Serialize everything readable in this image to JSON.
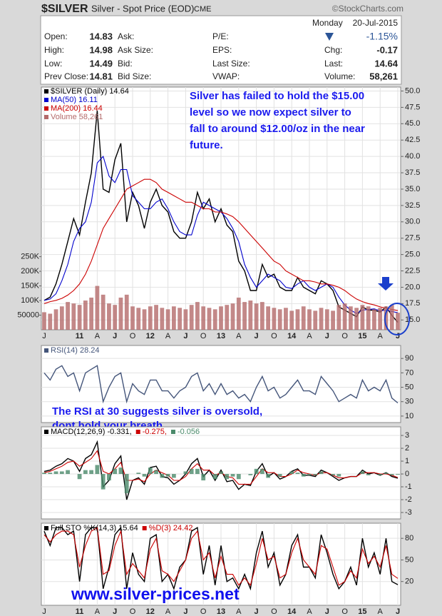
{
  "header": {
    "symbol": "$SILVER",
    "description": "Silver - Spot Price (EOD)",
    "exchange": "CME",
    "source": "©StockCharts.com",
    "day": "Monday",
    "date": "20-Jul-2015",
    "change_pct": "-1.15%",
    "rows": [
      [
        {
          "label": "Open:",
          "value": "14.83"
        },
        {
          "label": "Ask:"
        },
        {
          "label": "P/E:"
        }
      ],
      [
        {
          "label": "High:",
          "value": "14.98"
        },
        {
          "label": "Ask Size:"
        },
        {
          "label": "EPS:"
        },
        {
          "label": "Chg:",
          "value": "-0.17"
        }
      ],
      [
        {
          "label": "Low:",
          "value": "14.49"
        },
        {
          "label": "Bid:"
        },
        {
          "label": "Last Size:"
        },
        {
          "label": "Last:",
          "value": "14.64"
        }
      ],
      [
        {
          "label": "Prev Close:",
          "value": "14.81"
        },
        {
          "label": "Bid Size:"
        },
        {
          "label": "VWAP:"
        },
        {
          "label": "Volume:",
          "value": "58,261"
        }
      ]
    ]
  },
  "footer_url": "www.silver-prices.net",
  "chart_data": [
    {
      "type": "line",
      "grid": true,
      "legend": "upper left",
      "categories": [
        "J",
        null,
        null,
        null,
        null,
        null,
        "11",
        null,
        null,
        "A",
        null,
        null,
        "J",
        null,
        null,
        "O",
        null,
        null,
        "12",
        null,
        null,
        "A",
        null,
        null,
        "J",
        null,
        null,
        "O",
        null,
        null,
        "13",
        null,
        null,
        "A",
        null,
        null,
        "J",
        null,
        null,
        "O",
        null,
        null,
        "14",
        null,
        null,
        "A",
        null,
        null,
        "J",
        null,
        null,
        "O",
        null,
        null,
        "15",
        null,
        null,
        "A",
        null,
        null,
        "J"
      ],
      "annotation": [
        "Silver has failed to hold the $15.00",
        "level so we now expect silver to",
        "fall to around $12.00/oz in the near",
        "future."
      ],
      "ylim": [
        13.5,
        50.6
      ],
      "yticks": [
        {
          "value": 15,
          "label": "15.0"
        },
        17.5,
        {
          "value": 20,
          "label": "20.0"
        },
        22.5,
        {
          "value": 25,
          "label": "25.0"
        },
        27.5,
        {
          "value": 30,
          "label": "30.0"
        },
        32.5,
        {
          "value": 35,
          "label": "35.0"
        },
        37.5,
        {
          "value": 40,
          "label": "40.0"
        },
        42.5,
        {
          "value": 45,
          "label": "45.0"
        },
        47.5,
        {
          "value": 50,
          "label": "50.0"
        }
      ],
      "y2lim": [
        0,
        830000
      ],
      "y2ticks": [
        50000,
        {
          "value": 100000,
          "label": "100K"
        },
        {
          "value": 150000,
          "label": "150K"
        },
        {
          "value": 200000,
          "label": "200K"
        },
        {
          "value": 250000,
          "label": "250K"
        }
      ],
      "series": [
        {
          "name": "$SILVER (Daily) 14.64",
          "color": "#000000",
          "values": [
            18,
            18.5,
            20.5,
            23.5,
            27,
            30.5,
            28,
            33,
            37.5,
            47,
            35,
            34.5,
            39.5,
            42,
            30,
            34.5,
            32.5,
            29,
            33,
            35,
            32.5,
            31.5,
            28.5,
            27.5,
            27.5,
            30,
            34.5,
            32,
            33.5,
            30,
            32,
            29.5,
            28.5,
            24,
            22.5,
            19.5,
            19.5,
            23.5,
            21.5,
            22,
            20,
            19.5,
            19.5,
            21.5,
            20,
            19.5,
            19,
            21,
            20.5,
            19.5,
            17,
            16.5,
            16,
            15.5,
            17,
            16.5,
            16.5,
            16.2,
            17,
            15.7,
            14.64
          ]
        },
        {
          "name": "MA(50) 16.11",
          "color": "#0000cc",
          "values": [
            18,
            18.2,
            19,
            21,
            23.5,
            27,
            29,
            30,
            33,
            39,
            40,
            37,
            36,
            38,
            38,
            34,
            33,
            32,
            32,
            33,
            33.5,
            32,
            30,
            28.5,
            28,
            28,
            31,
            33,
            32.5,
            32,
            31.5,
            30.5,
            29,
            27,
            23.5,
            21.5,
            20,
            21,
            22,
            21.5,
            21,
            20,
            19.8,
            20.5,
            21,
            20,
            19.5,
            20,
            20.5,
            20,
            18.5,
            17.3,
            16.5,
            16,
            16.5,
            16.6,
            16.7,
            16.4,
            16.5,
            16.3,
            16.11
          ]
        },
        {
          "name": "MA(200) 16.44",
          "color": "#cc0000",
          "values": [
            17.5,
            17.8,
            18,
            18.3,
            18.8,
            19.5,
            20.5,
            22,
            24,
            26.5,
            29,
            30.5,
            32,
            33.5,
            35,
            35.5,
            36,
            36.5,
            36.5,
            36,
            35,
            34.5,
            34,
            33.5,
            33,
            33,
            32.5,
            32,
            32,
            31.5,
            31.5,
            31.2,
            30.8,
            30,
            29,
            28,
            27,
            26,
            25,
            24,
            23.5,
            22.5,
            22,
            21.5,
            21,
            21,
            20.8,
            20.5,
            20.5,
            20.3,
            20,
            19.5,
            18.8,
            18.2,
            17.8,
            17.5,
            17.3,
            17,
            16.8,
            16.6,
            16.44
          ]
        },
        {
          "name": "Volume 58,261",
          "color": "#b46a6a",
          "type": "bar",
          "axis": "y2",
          "values": [
            60000,
            55000,
            70000,
            80000,
            95000,
            90000,
            85000,
            100000,
            110000,
            150000,
            120000,
            90000,
            85000,
            110000,
            120000,
            80000,
            75000,
            70000,
            80000,
            85000,
            75000,
            70000,
            80000,
            75000,
            70000,
            85000,
            95000,
            80000,
            75000,
            70000,
            80000,
            85000,
            90000,
            110000,
            95000,
            100000,
            90000,
            95000,
            80000,
            75000,
            70000,
            75000,
            65000,
            70000,
            80000,
            70000,
            65000,
            75000,
            70000,
            65000,
            85000,
            90000,
            80000,
            75000,
            85000,
            80000,
            70000,
            75000,
            80000,
            85000,
            58261
          ]
        }
      ]
    },
    {
      "type": "line",
      "grid": true,
      "legend": "upper left",
      "annotation": [
        "The RSI at 30 suggests silver is oversold,",
        "dont hold your breath."
      ],
      "ylim": [
        1,
        108
      ],
      "yticks": [
        10,
        30,
        50,
        70,
        90
      ],
      "series": [
        {
          "name": "RSI(14) 28.24",
          "color": "#44557a",
          "values": [
            70,
            60,
            75,
            80,
            65,
            70,
            45,
            70,
            75,
            80,
            30,
            50,
            65,
            70,
            30,
            55,
            45,
            40,
            60,
            60,
            45,
            45,
            35,
            45,
            50,
            65,
            70,
            45,
            55,
            40,
            55,
            40,
            45,
            35,
            40,
            30,
            50,
            65,
            45,
            50,
            35,
            40,
            50,
            60,
            45,
            45,
            40,
            65,
            55,
            45,
            30,
            35,
            40,
            35,
            60,
            45,
            50,
            45,
            60,
            35,
            28.24
          ]
        }
      ]
    },
    {
      "type": "line",
      "grid": true,
      "legend": "upper left",
      "ylim": [
        -3.5,
        3.67
      ],
      "yticks": [
        -3,
        -2,
        -1,
        0,
        1,
        2,
        3
      ],
      "series": [
        {
          "name": "MACD(12,26,9) -0.331,",
          "color": "#000000",
          "values": [
            0.2,
            0.3,
            0.6,
            0.8,
            1.2,
            1.0,
            0.2,
            1.2,
            1.5,
            2.5,
            -1.0,
            -0.5,
            0.8,
            1.4,
            -2.0,
            -0.5,
            -0.3,
            -0.8,
            0.5,
            0.6,
            -0.2,
            -0.3,
            -0.8,
            -0.5,
            0,
            0.8,
            1.2,
            -0.2,
            0.3,
            -0.5,
            0.3,
            -0.6,
            -0.5,
            -1.2,
            -0.8,
            -0.9,
            0.2,
            0.8,
            -0.2,
            0.1,
            -0.4,
            -0.2,
            0.2,
            0.4,
            -0.1,
            -0.1,
            -0.2,
            0.3,
            0.1,
            -0.2,
            -0.5,
            -0.3,
            -0.2,
            -0.2,
            0.3,
            0,
            0.1,
            -0.1,
            0.1,
            -0.2,
            -0.331
          ]
        },
        {
          "name": "-0.275,",
          "color": "#cc0000",
          "values": [
            0.1,
            0.2,
            0.4,
            0.6,
            0.9,
            1.0,
            0.6,
            0.9,
            1.2,
            1.8,
            0.2,
            0,
            0.4,
            0.9,
            -0.5,
            -0.5,
            -0.4,
            -0.6,
            0,
            0.3,
            0.1,
            -0.1,
            -0.5,
            -0.5,
            -0.2,
            0.4,
            0.8,
            0.3,
            0.3,
            -0.1,
            0.1,
            -0.2,
            -0.3,
            -0.8,
            -0.8,
            -0.8,
            -0.2,
            0.4,
            0.1,
            0.1,
            -0.2,
            -0.2,
            0,
            0.3,
            0.1,
            0,
            -0.1,
            0.1,
            0.1,
            -0.1,
            -0.3,
            -0.3,
            -0.2,
            -0.2,
            0.1,
            0.1,
            0.1,
            0,
            0,
            -0.1,
            -0.275
          ]
        },
        {
          "name": "-0.056",
          "color": "#4a8a6a",
          "type": "bar",
          "values": [
            0.1,
            0.1,
            0.2,
            0.2,
            0.3,
            0,
            -0.4,
            0.3,
            0.3,
            0.7,
            -1.2,
            -0.5,
            0.4,
            0.5,
            -1.5,
            0,
            0.1,
            -0.2,
            0.5,
            0.3,
            -0.3,
            -0.2,
            -0.3,
            0,
            0.2,
            0.4,
            0.4,
            -0.5,
            0,
            -0.4,
            0.2,
            -0.4,
            -0.2,
            -0.4,
            0,
            -0.1,
            0.4,
            0.4,
            -0.3,
            0,
            -0.2,
            0,
            0.2,
            0.1,
            -0.2,
            -0.1,
            -0.1,
            0.2,
            0,
            -0.1,
            -0.2,
            0,
            0,
            0,
            0.2,
            -0.1,
            0,
            -0.1,
            0.1,
            -0.1,
            -0.056
          ]
        }
      ]
    },
    {
      "type": "line",
      "grid": true,
      "legend": "upper left",
      "categories": [
        "J",
        null,
        null,
        null,
        null,
        null,
        "11",
        null,
        null,
        "A",
        null,
        null,
        "J",
        null,
        null,
        "O",
        null,
        null,
        "12",
        null,
        null,
        "A",
        null,
        null,
        "J",
        null,
        null,
        "O",
        null,
        null,
        "13",
        null,
        null,
        "A",
        null,
        null,
        "J",
        null,
        null,
        "O",
        null,
        null,
        "14",
        null,
        null,
        "A",
        null,
        null,
        "J",
        null,
        null,
        "O",
        null,
        null,
        "15",
        null,
        null,
        "A",
        null,
        null,
        "J"
      ],
      "ylim": [
        -13,
        101
      ],
      "yticks": [
        20,
        50,
        80
      ],
      "series": [
        {
          "name": "Full STO %K(14,3) 15.64",
          "color": "#000000",
          "values": [
            90,
            70,
            95,
            95,
            85,
            90,
            20,
            85,
            95,
            95,
            10,
            40,
            85,
            95,
            10,
            60,
            30,
            20,
            80,
            85,
            20,
            30,
            10,
            40,
            50,
            90,
            95,
            30,
            70,
            15,
            70,
            20,
            25,
            10,
            30,
            10,
            60,
            90,
            40,
            60,
            15,
            30,
            70,
            85,
            40,
            40,
            25,
            85,
            60,
            30,
            10,
            20,
            40,
            15,
            80,
            40,
            60,
            30,
            80,
            20,
            15.64
          ]
        },
        {
          "name": "%D(3) 24.42",
          "color": "#cc0000",
          "values": [
            85,
            75,
            85,
            90,
            90,
            85,
            40,
            70,
            90,
            95,
            30,
            35,
            70,
            90,
            30,
            45,
            35,
            25,
            65,
            80,
            35,
            30,
            20,
            35,
            50,
            80,
            90,
            50,
            60,
            25,
            55,
            30,
            30,
            15,
            25,
            15,
            45,
            80,
            50,
            55,
            25,
            30,
            60,
            80,
            50,
            40,
            30,
            70,
            65,
            40,
            15,
            20,
            35,
            25,
            65,
            45,
            55,
            40,
            70,
            30,
            24.42
          ]
        }
      ]
    }
  ]
}
